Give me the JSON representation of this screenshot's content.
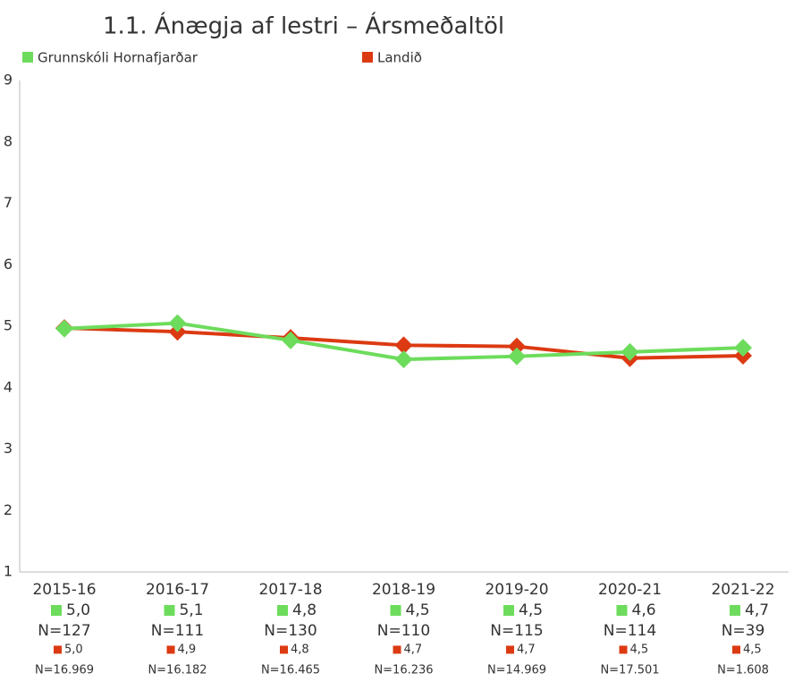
{
  "chart_data": {
    "type": "line",
    "title": "1.1. Ánægja af lestri – Ársmeðaltöl",
    "categories": [
      "2015-16",
      "2016-17",
      "2017-18",
      "2018-19",
      "2019-20",
      "2020-21",
      "2021-22"
    ],
    "series": [
      {
        "name": "Grunnskóli Hornafjarðar",
        "color": "#6ddc5c",
        "values": [
          4.96,
          5.05,
          4.77,
          4.46,
          4.51,
          4.58,
          4.65
        ],
        "value_labels": [
          "5,0",
          "5,1",
          "4,8",
          "4,5",
          "4,5",
          "4,6",
          "4,7"
        ],
        "n_labels": [
          "N=127",
          "N=111",
          "N=130",
          "N=110",
          "N=115",
          "N=114",
          "N=39"
        ]
      },
      {
        "name": "Landið",
        "color": "#dc3a12",
        "values": [
          4.97,
          4.91,
          4.81,
          4.69,
          4.67,
          4.48,
          4.52
        ],
        "value_labels": [
          "5,0",
          "4,9",
          "4,8",
          "4,7",
          "4,7",
          "4,5",
          "4,5"
        ],
        "n_labels": [
          "N=16.969",
          "N=16.182",
          "N=16.465",
          "N=16.236",
          "N=14.969",
          "N=17.501",
          "N=1.608"
        ]
      }
    ],
    "ylim": [
      1,
      9
    ],
    "yticks": [
      1,
      2,
      3,
      4,
      5,
      6,
      7,
      8,
      9
    ],
    "grid": false
  }
}
